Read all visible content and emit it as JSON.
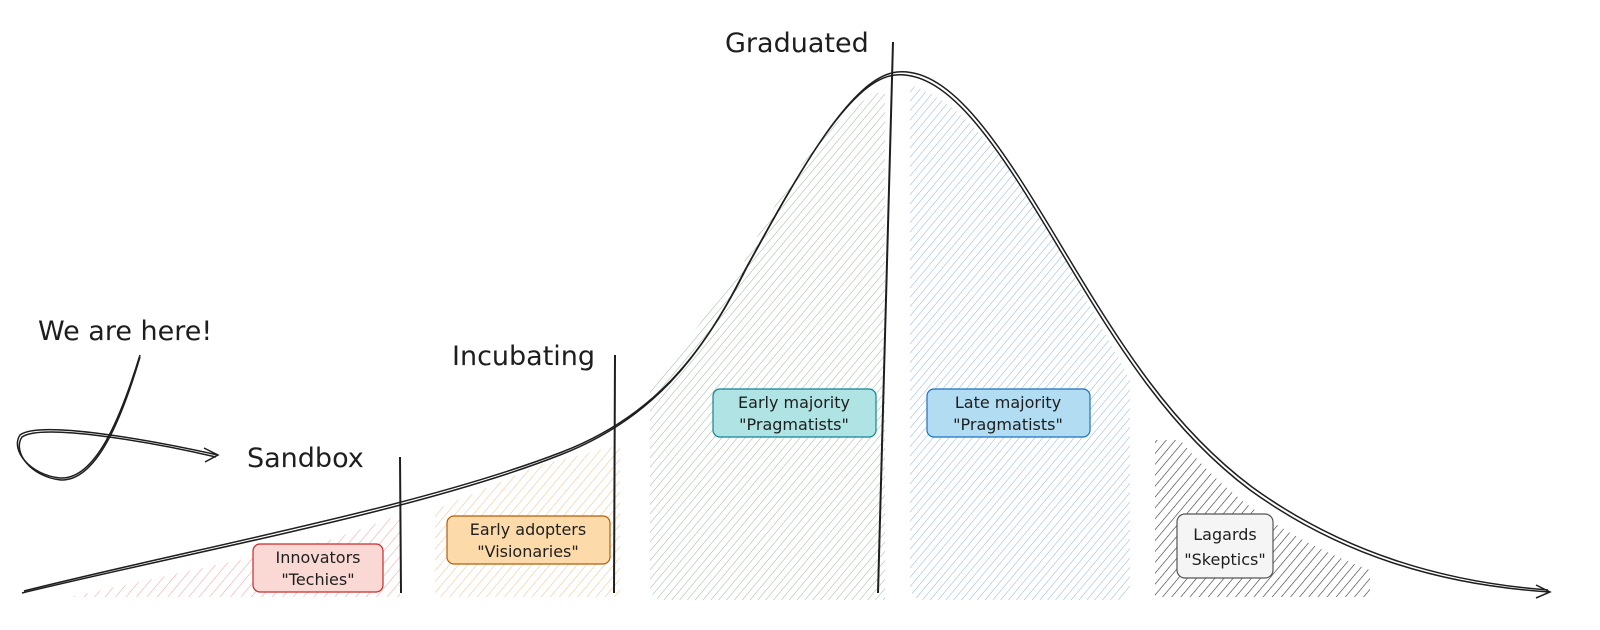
{
  "stages": {
    "sandbox": "Sandbox",
    "incubating": "Incubating",
    "graduated": "Graduated"
  },
  "annotation": "We are here!",
  "segments": [
    {
      "title": "Innovators",
      "subtitle": "\"Techies\"",
      "fill": "#ffc9c9",
      "stroke": "#c92a2a",
      "bg": "#fad9d5"
    },
    {
      "title": "Early adopters",
      "subtitle": "\"Visionaries\"",
      "fill": "#ffd8a8",
      "stroke": "#b45f06",
      "bg": "#fcdaaa"
    },
    {
      "title": "Early majority",
      "subtitle": "\"Pragmatists\"",
      "fill": "#b2f2bb",
      "stroke": "#0c8599",
      "bg": "#b0e3e3"
    },
    {
      "title": "Late majority",
      "subtitle": "\"Pragmatists\"",
      "fill": "#a5d8ff",
      "stroke": "#1971c2",
      "bg": "#b1dcf2"
    },
    {
      "title": "Lagards",
      "subtitle": "\"Skeptics\"",
      "fill": "#1e1e1e",
      "stroke": "#555555",
      "bg": "#f5f5f5"
    }
  ]
}
